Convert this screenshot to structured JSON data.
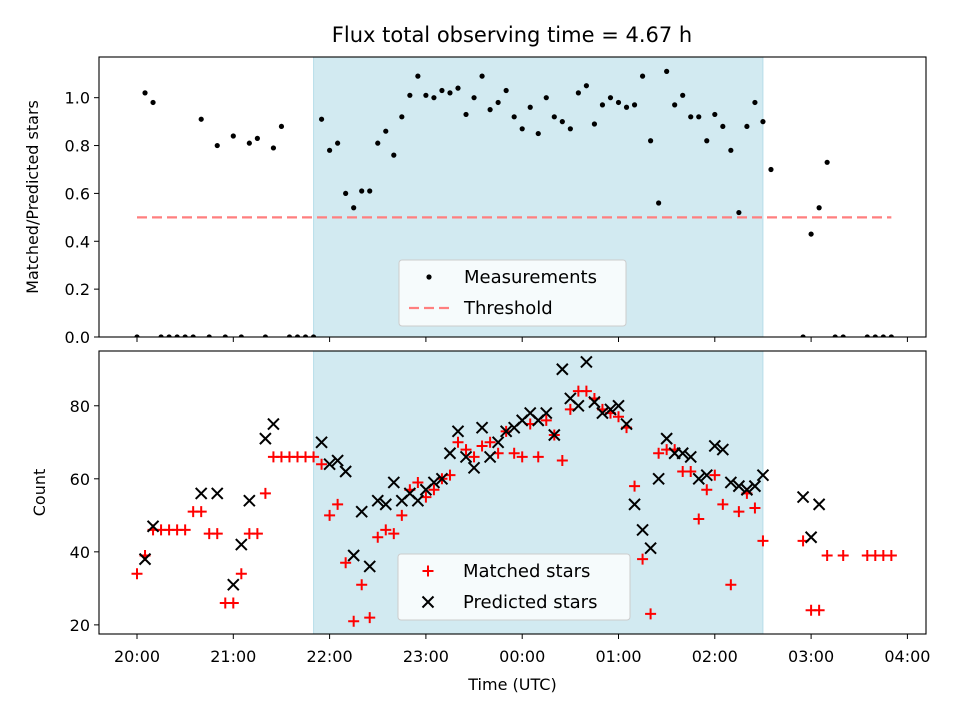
{
  "chart_data": [
    {
      "type": "scatter",
      "title": "Flux total observing time = 4.67 h",
      "xlabel": "",
      "ylabel": "Matched/Predicted stars",
      "ylim": [
        0,
        1.17
      ],
      "yticks": [
        "0.0",
        "0.2",
        "0.4",
        "0.6",
        "0.8",
        "1.0"
      ],
      "highlight_span": [
        "21:50",
        "02:30"
      ],
      "highlight_color": "#add8e6",
      "threshold": {
        "name": "Threshold",
        "value": 0.5,
        "x_range": [
          "20:00",
          "03:50"
        ],
        "color": "#ff7f7f",
        "style": "dashed"
      },
      "legend": {
        "position": "lower center",
        "entries": [
          "Measurements",
          "Threshold"
        ]
      },
      "series": [
        {
          "name": "Measurements",
          "color": "#000000",
          "marker": "dot",
          "points": [
            [
              "20:00",
              0.0
            ],
            [
              "20:05",
              1.02
            ],
            [
              "20:10",
              0.98
            ],
            [
              "20:15",
              0.0
            ],
            [
              "20:20",
              0.0
            ],
            [
              "20:25",
              0.0
            ],
            [
              "20:30",
              0.0
            ],
            [
              "20:35",
              0.0
            ],
            [
              "20:40",
              0.91
            ],
            [
              "20:45",
              0.0
            ],
            [
              "20:50",
              0.8
            ],
            [
              "20:55",
              0.0
            ],
            [
              "21:00",
              0.84
            ],
            [
              "21:05",
              0.0
            ],
            [
              "21:10",
              0.81
            ],
            [
              "21:15",
              0.83
            ],
            [
              "21:20",
              0.0
            ],
            [
              "21:25",
              0.79
            ],
            [
              "21:30",
              0.88
            ],
            [
              "21:35",
              0.0
            ],
            [
              "21:40",
              0.0
            ],
            [
              "21:45",
              0.0
            ],
            [
              "21:50",
              0.0
            ],
            [
              "21:55",
              0.91
            ],
            [
              "22:00",
              0.78
            ],
            [
              "22:05",
              0.81
            ],
            [
              "22:10",
              0.6
            ],
            [
              "22:15",
              0.54
            ],
            [
              "22:20",
              0.61
            ],
            [
              "22:25",
              0.61
            ],
            [
              "22:30",
              0.81
            ],
            [
              "22:35",
              0.86
            ],
            [
              "22:40",
              0.76
            ],
            [
              "22:45",
              0.92
            ],
            [
              "22:50",
              1.01
            ],
            [
              "22:55",
              1.09
            ],
            [
              "23:00",
              1.01
            ],
            [
              "23:05",
              1.0
            ],
            [
              "23:10",
              1.03
            ],
            [
              "23:15",
              1.02
            ],
            [
              "23:20",
              1.04
            ],
            [
              "23:25",
              0.93
            ],
            [
              "23:30",
              1.0
            ],
            [
              "23:35",
              1.09
            ],
            [
              "23:40",
              0.95
            ],
            [
              "23:45",
              0.98
            ],
            [
              "23:50",
              1.03
            ],
            [
              "23:55",
              0.92
            ],
            [
              "00:00",
              0.87
            ],
            [
              "00:05",
              0.96
            ],
            [
              "00:10",
              0.85
            ],
            [
              "00:15",
              1.0
            ],
            [
              "00:20",
              0.92
            ],
            [
              "00:25",
              0.9
            ],
            [
              "00:30",
              0.87
            ],
            [
              "00:35",
              1.02
            ],
            [
              "00:40",
              1.05
            ],
            [
              "00:45",
              0.89
            ],
            [
              "00:50",
              0.97
            ],
            [
              "00:55",
              1.0
            ],
            [
              "01:00",
              0.98
            ],
            [
              "01:05",
              0.96
            ],
            [
              "01:10",
              0.97
            ],
            [
              "01:15",
              1.09
            ],
            [
              "01:20",
              0.82
            ],
            [
              "01:25",
              0.56
            ],
            [
              "01:30",
              1.11
            ],
            [
              "01:35",
              0.97
            ],
            [
              "01:40",
              1.01
            ],
            [
              "01:45",
              0.92
            ],
            [
              "01:50",
              0.92
            ],
            [
              "01:55",
              0.82
            ],
            [
              "02:00",
              0.93
            ],
            [
              "02:05",
              0.88
            ],
            [
              "02:10",
              0.78
            ],
            [
              "02:15",
              0.52
            ],
            [
              "02:20",
              0.88
            ],
            [
              "02:25",
              0.98
            ],
            [
              "02:30",
              0.9
            ],
            [
              "02:35",
              0.7
            ],
            [
              "02:55",
              0.0
            ],
            [
              "03:00",
              0.43
            ],
            [
              "03:05",
              0.54
            ],
            [
              "03:10",
              0.73
            ],
            [
              "03:15",
              0.0
            ],
            [
              "03:20",
              0.0
            ],
            [
              "03:35",
              0.0
            ],
            [
              "03:40",
              0.0
            ],
            [
              "03:45",
              0.0
            ],
            [
              "03:50",
              0.0
            ]
          ]
        }
      ]
    },
    {
      "type": "scatter",
      "title": "",
      "xlabel": "Time (UTC)",
      "ylabel": "Count",
      "ylim": [
        17.5,
        95
      ],
      "yticks": [
        "20",
        "40",
        "60",
        "80"
      ],
      "xticks": [
        "20:00",
        "21:00",
        "22:00",
        "23:00",
        "00:00",
        "01:00",
        "02:00",
        "03:00",
        "04:00"
      ],
      "highlight_span": [
        "21:50",
        "02:30"
      ],
      "highlight_color": "#add8e6",
      "legend": {
        "position": "lower center",
        "entries": [
          "Matched stars",
          "Predicted stars"
        ]
      },
      "series": [
        {
          "name": "Matched stars",
          "color": "#ff0000",
          "marker": "plus",
          "points": [
            [
              "20:00",
              34
            ],
            [
              "20:05",
              39
            ],
            [
              "20:10",
              46
            ],
            [
              "20:15",
              46
            ],
            [
              "20:20",
              46
            ],
            [
              "20:25",
              46
            ],
            [
              "20:30",
              46
            ],
            [
              "20:35",
              51
            ],
            [
              "20:40",
              51
            ],
            [
              "20:45",
              45
            ],
            [
              "20:50",
              45
            ],
            [
              "20:55",
              26
            ],
            [
              "21:00",
              26
            ],
            [
              "21:05",
              34
            ],
            [
              "21:10",
              45
            ],
            [
              "21:15",
              45
            ],
            [
              "21:20",
              56
            ],
            [
              "21:25",
              66
            ],
            [
              "21:30",
              66
            ],
            [
              "21:35",
              66
            ],
            [
              "21:40",
              66
            ],
            [
              "21:45",
              66
            ],
            [
              "21:50",
              66
            ],
            [
              "21:55",
              64
            ],
            [
              "22:00",
              50
            ],
            [
              "22:05",
              53
            ],
            [
              "22:10",
              37
            ],
            [
              "22:15",
              21
            ],
            [
              "22:20",
              31
            ],
            [
              "22:25",
              22
            ],
            [
              "22:30",
              44
            ],
            [
              "22:35",
              46
            ],
            [
              "22:40",
              45
            ],
            [
              "22:45",
              50
            ],
            [
              "22:50",
              57
            ],
            [
              "22:55",
              59
            ],
            [
              "23:00",
              55
            ],
            [
              "23:05",
              57
            ],
            [
              "23:10",
              60
            ],
            [
              "23:15",
              61
            ],
            [
              "23:20",
              70
            ],
            [
              "23:25",
              68
            ],
            [
              "23:30",
              66
            ],
            [
              "23:35",
              69
            ],
            [
              "23:40",
              70
            ],
            [
              "23:45",
              67
            ],
            [
              "23:50",
              73
            ],
            [
              "23:55",
              67
            ],
            [
              "00:00",
              66
            ],
            [
              "00:05",
              75
            ],
            [
              "00:10",
              66
            ],
            [
              "00:15",
              76
            ],
            [
              "00:20",
              72
            ],
            [
              "00:25",
              65
            ],
            [
              "00:30",
              79
            ],
            [
              "00:35",
              84
            ],
            [
              "00:40",
              84
            ],
            [
              "00:45",
              82
            ],
            [
              "00:50",
              79
            ],
            [
              "00:55",
              78
            ],
            [
              "01:00",
              77
            ],
            [
              "01:05",
              74
            ],
            [
              "01:10",
              58
            ],
            [
              "01:15",
              38
            ],
            [
              "01:20",
              23
            ],
            [
              "01:25",
              67
            ],
            [
              "01:30",
              68
            ],
            [
              "01:35",
              68
            ],
            [
              "01:40",
              62
            ],
            [
              "01:45",
              62
            ],
            [
              "01:50",
              49
            ],
            [
              "01:55",
              57
            ],
            [
              "02:00",
              61
            ],
            [
              "02:05",
              53
            ],
            [
              "02:10",
              31
            ],
            [
              "02:15",
              51
            ],
            [
              "02:20",
              56
            ],
            [
              "02:25",
              52
            ],
            [
              "02:30",
              43
            ],
            [
              "02:55",
              43
            ],
            [
              "03:00",
              24
            ],
            [
              "03:05",
              24
            ],
            [
              "03:10",
              39
            ],
            [
              "03:20",
              39
            ],
            [
              "03:35",
              39
            ],
            [
              "03:40",
              39
            ],
            [
              "03:45",
              39
            ],
            [
              "03:50",
              39
            ]
          ]
        },
        {
          "name": "Predicted stars",
          "color": "#000000",
          "marker": "x",
          "points": [
            [
              "20:05",
              38
            ],
            [
              "20:10",
              47
            ],
            [
              "20:40",
              56
            ],
            [
              "20:50",
              56
            ],
            [
              "21:00",
              31
            ],
            [
              "21:05",
              42
            ],
            [
              "21:10",
              54
            ],
            [
              "21:20",
              71
            ],
            [
              "21:25",
              75
            ],
            [
              "21:55",
              70
            ],
            [
              "22:00",
              64
            ],
            [
              "22:05",
              65
            ],
            [
              "22:10",
              62
            ],
            [
              "22:15",
              39
            ],
            [
              "22:20",
              51
            ],
            [
              "22:25",
              36
            ],
            [
              "22:30",
              54
            ],
            [
              "22:35",
              53
            ],
            [
              "22:40",
              59
            ],
            [
              "22:45",
              54
            ],
            [
              "22:50",
              56
            ],
            [
              "22:55",
              54
            ],
            [
              "23:00",
              57
            ],
            [
              "23:05",
              59
            ],
            [
              "23:10",
              60
            ],
            [
              "23:15",
              67
            ],
            [
              "23:20",
              73
            ],
            [
              "23:25",
              66
            ],
            [
              "23:30",
              63
            ],
            [
              "23:35",
              74
            ],
            [
              "23:40",
              66
            ],
            [
              "23:45",
              70
            ],
            [
              "23:50",
              73
            ],
            [
              "23:55",
              74
            ],
            [
              "00:00",
              76
            ],
            [
              "00:05",
              78
            ],
            [
              "00:10",
              76
            ],
            [
              "00:15",
              78
            ],
            [
              "00:20",
              72
            ],
            [
              "00:25",
              90
            ],
            [
              "00:30",
              82
            ],
            [
              "00:35",
              80
            ],
            [
              "00:40",
              92
            ],
            [
              "00:45",
              81
            ],
            [
              "00:50",
              78
            ],
            [
              "00:55",
              79
            ],
            [
              "01:00",
              80
            ],
            [
              "01:05",
              75
            ],
            [
              "01:10",
              53
            ],
            [
              "01:15",
              46
            ],
            [
              "01:20",
              41
            ],
            [
              "01:25",
              60
            ],
            [
              "01:30",
              71
            ],
            [
              "01:35",
              67
            ],
            [
              "01:40",
              67
            ],
            [
              "01:45",
              66
            ],
            [
              "01:50",
              60
            ],
            [
              "01:55",
              61
            ],
            [
              "02:00",
              69
            ],
            [
              "02:05",
              68
            ],
            [
              "02:10",
              59
            ],
            [
              "02:15",
              58
            ],
            [
              "02:20",
              57
            ],
            [
              "02:25",
              58
            ],
            [
              "02:30",
              61
            ],
            [
              "02:55",
              55
            ],
            [
              "03:00",
              44
            ],
            [
              "03:05",
              53
            ]
          ]
        }
      ]
    }
  ]
}
